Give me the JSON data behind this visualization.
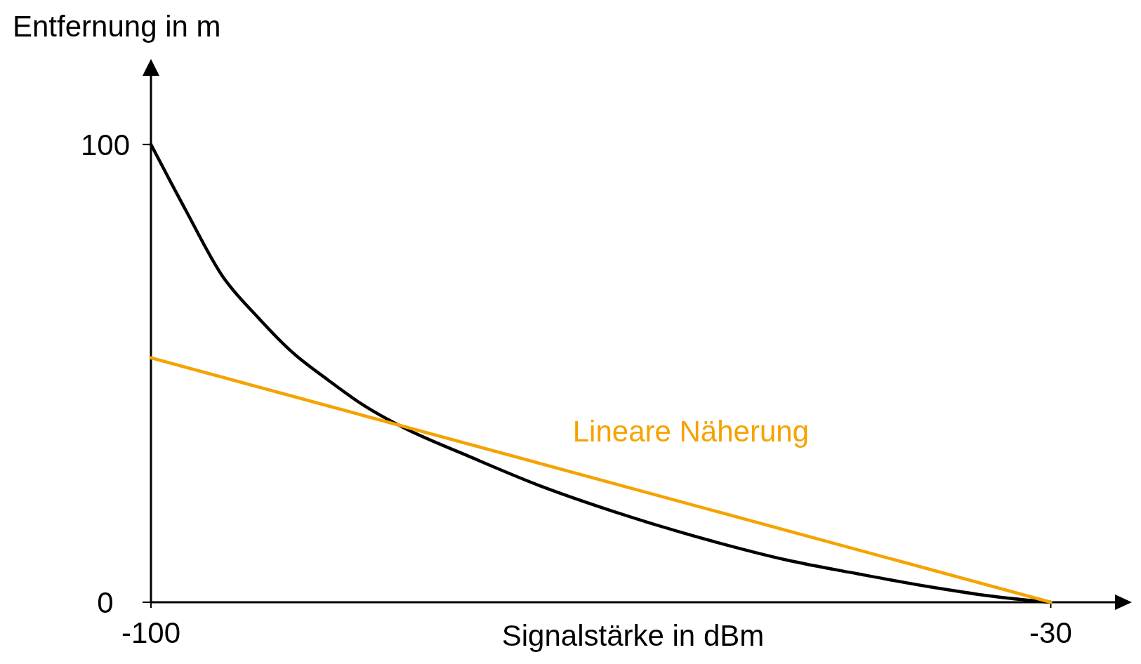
{
  "chart_data": {
    "type": "line",
    "xlabel": "Signalstärke in dBm",
    "ylabel": "Entfernung in m",
    "xlim": [
      -100,
      -25
    ],
    "ylim": [
      0,
      115
    ],
    "xticks": [
      -100,
      -30
    ],
    "yticks": [
      0,
      100
    ],
    "grid": false,
    "legend": false,
    "marker": "none",
    "line_style": "solid",
    "series": [
      {
        "color": "#000000",
        "x": [
          -100,
          -97.25,
          -94.5,
          -91.7,
          -89,
          -86.2,
          -83.5,
          -80.4,
          -75.2,
          -69.7,
          -64.2,
          -56,
          -50.5,
          -45,
          -39.5,
          -34,
          -30
        ],
        "values": [
          100,
          85.4,
          71.5,
          62.3,
          54.6,
          48.5,
          43.1,
          38.2,
          31.8,
          25.4,
          20,
          13.1,
          9.2,
          6.2,
          3.4,
          1.1,
          0
        ]
      },
      {
        "name": "Lineare Näherung",
        "color": "#f5a300",
        "x": [
          -100,
          -30
        ],
        "values": [
          53.4,
          0
        ]
      }
    ]
  }
}
